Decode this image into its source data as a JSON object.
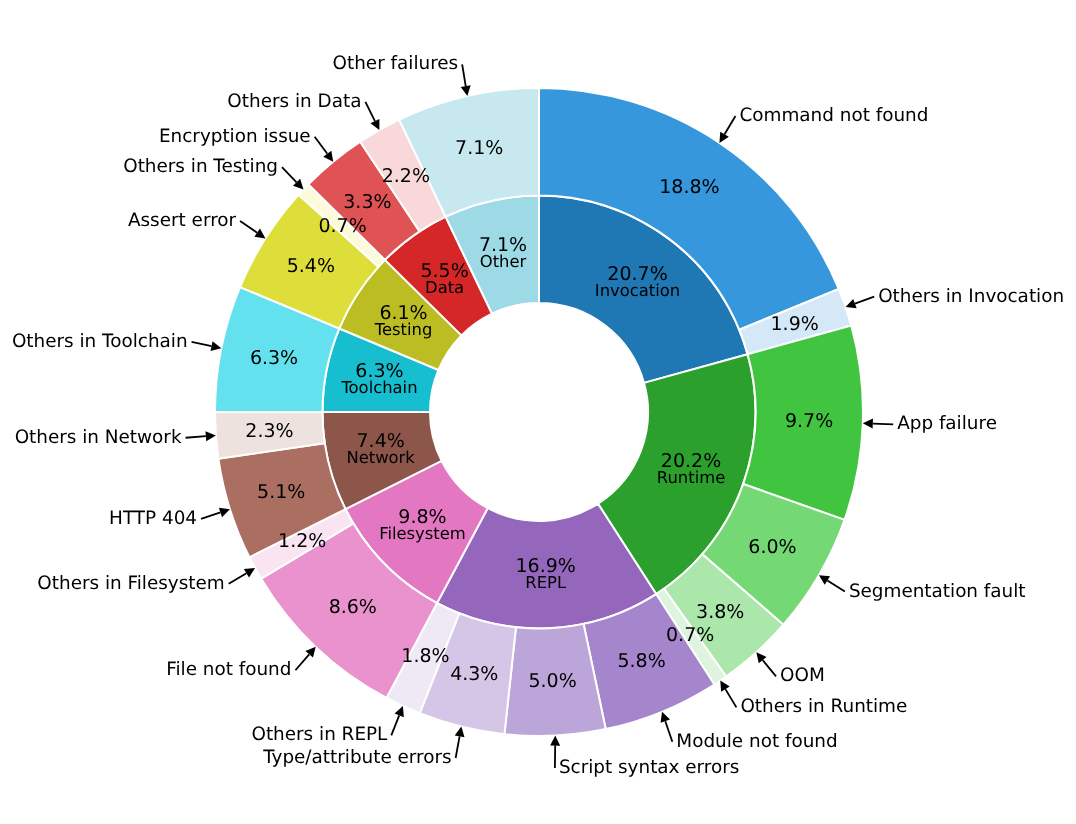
{
  "chart_data": [
    {
      "type": "donut",
      "categories": [
        "Invocation",
        "Runtime",
        "REPL",
        "Filesystem",
        "Network",
        "Toolchain",
        "Testing",
        "Data",
        "Other"
      ],
      "values": [
        20.7,
        20.2,
        16.9,
        9.8,
        7.4,
        6.3,
        6.1,
        5.5,
        7.1
      ],
      "colors": [
        "#1f77b4",
        "#2ca02c",
        "#9467bd",
        "#e377c2",
        "#8c564b",
        "#17becf",
        "#bcbd22",
        "#d62728",
        "#9edae5"
      ],
      "value_labels": [
        "20.7%",
        "20.2%",
        "16.9%",
        "9.8%",
        "7.4%",
        "6.3%",
        "6.1%",
        "5.5%",
        "7.1%"
      ]
    },
    {
      "type": "donut",
      "categories": [
        "Command not found",
        "Others in Invocation",
        "App failure",
        "Segmentation fault",
        "OOM",
        "Others in Runtime",
        "Module not found",
        "Script syntax errors",
        "Type/attribute errors",
        "Others in REPL",
        "File not found",
        "Others in Filesystem",
        "HTTP 404",
        "Others in Network",
        "Others in Toolchain",
        "Assert error",
        "Others in Testing",
        "Encryption issue",
        "Others in Data",
        "Other failures"
      ],
      "values": [
        18.8,
        1.9,
        9.7,
        6.0,
        3.8,
        0.7,
        5.8,
        5.0,
        4.3,
        1.8,
        8.6,
        1.2,
        5.1,
        2.3,
        6.3,
        5.4,
        0.7,
        3.3,
        2.2,
        7.1
      ],
      "colors": [
        "#3697dc",
        "#d5e8f7",
        "#41c541",
        "#74d874",
        "#abe6ab",
        "#def4de",
        "#a585cb",
        "#bca5d9",
        "#d5c6e7",
        "#efe9f5",
        "#e992cd",
        "#fae4f2",
        "#ab6f61",
        "#eee2df",
        "#63e1ee",
        "#dede3b",
        "#fbfbdb",
        "#e05354",
        "#f8d8d9",
        "#c6e8ee"
      ],
      "value_labels": [
        "18.8%",
        "1.9%",
        "9.7%",
        "6.0%",
        "3.8%",
        "0.7%",
        "5.8%",
        "5.0%",
        "4.3%",
        "1.8%",
        "8.6%",
        "1.2%",
        "5.1%",
        "2.3%",
        "6.3%",
        "5.4%",
        "0.7%",
        "3.3%",
        "2.2%",
        "7.1%"
      ]
    }
  ]
}
